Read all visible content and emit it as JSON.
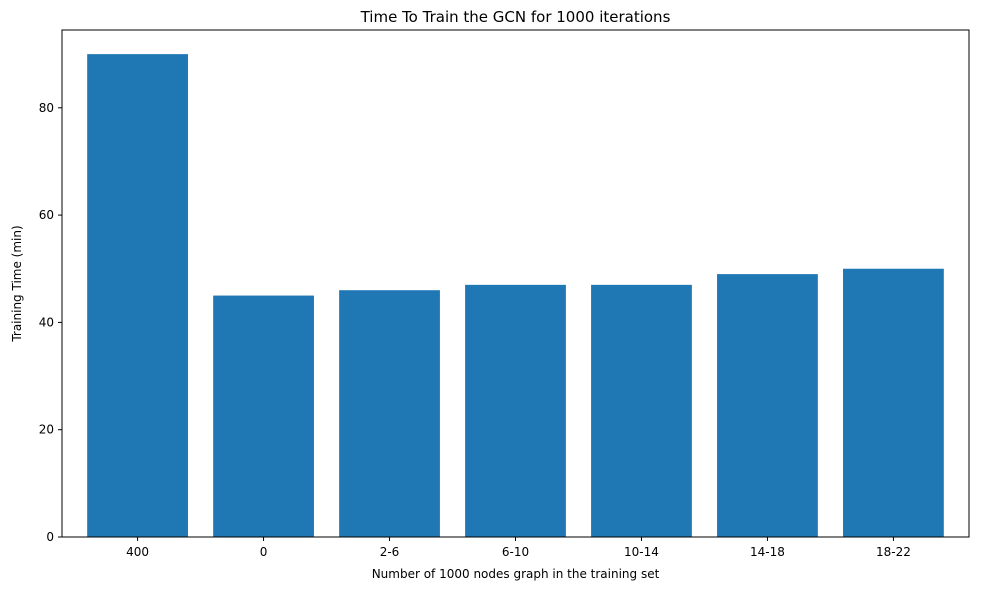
{
  "chart_data": {
    "type": "bar",
    "title": "Time To Train the GCN for 1000 iterations",
    "xlabel": "Number of 1000 nodes graph in the training set",
    "ylabel": "Training Time (min)",
    "categories": [
      "400",
      "0",
      "2-6",
      "6-10",
      "10-14",
      "14-18",
      "18-22"
    ],
    "values": [
      90,
      45,
      46,
      47,
      47,
      49,
      50
    ],
    "ylim": [
      0,
      94.5
    ],
    "yticks": [
      0,
      20,
      40,
      60,
      80
    ],
    "grid": false,
    "legend": false,
    "bar_color": "#1f77b4"
  }
}
